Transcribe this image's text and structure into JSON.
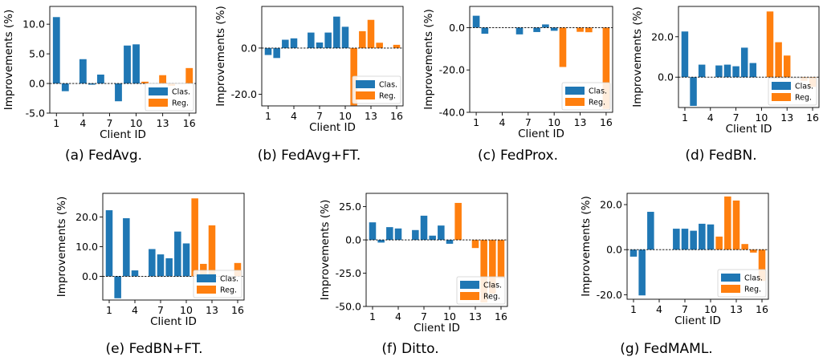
{
  "figure": {
    "colors": {
      "clas": "#1f77b4",
      "reg": "#ff7f0e"
    }
  },
  "chart_data": [
    {
      "type": "bar",
      "caption": "(a) FedAvg.",
      "xlabel": "Client ID",
      "ylabel": "Improvements (%)",
      "ylim": [
        -5,
        13
      ],
      "yticks": [
        -5,
        0,
        5,
        10
      ],
      "yticklabels": [
        "-5.0",
        "0.0",
        "5.0",
        "10.0"
      ],
      "xticks": [
        1,
        4,
        7,
        10,
        13,
        16
      ],
      "legend": {
        "position": "lower-right",
        "entries": [
          "Clas.",
          "Reg."
        ]
      },
      "clients": [
        1,
        2,
        3,
        4,
        5,
        6,
        7,
        8,
        9,
        10,
        11,
        12,
        13,
        14,
        15,
        16
      ],
      "series": [
        {
          "name": "Clas.",
          "clients": [
            1,
            2,
            3,
            4,
            5,
            6,
            7,
            8,
            9,
            10
          ],
          "values": [
            11.2,
            -1.3,
            0.0,
            4.1,
            -0.2,
            1.5,
            0.0,
            -3.0,
            6.4,
            6.6
          ]
        },
        {
          "name": "Reg.",
          "clients": [
            11,
            12,
            13,
            14,
            15,
            16
          ],
          "values": [
            0.3,
            0.0,
            1.4,
            -0.4,
            0.0,
            2.6
          ]
        }
      ]
    },
    {
      "type": "bar",
      "caption": "(b) FedAvg+FT.",
      "xlabel": "Client ID",
      "ylabel": "Improvements (%)",
      "ylim": [
        -25,
        18
      ],
      "yticks": [
        -20,
        0
      ],
      "yticklabels": [
        "-20.0",
        "0.0"
      ],
      "xticks": [
        1,
        4,
        7,
        10,
        13,
        16
      ],
      "legend": {
        "position": "lower-right",
        "entries": [
          "Clas.",
          "Reg."
        ]
      },
      "clients": [
        1,
        2,
        3,
        4,
        5,
        6,
        7,
        8,
        9,
        10,
        11,
        12,
        13,
        14,
        15,
        16
      ],
      "series": [
        {
          "name": "Clas.",
          "clients": [
            1,
            2,
            3,
            4,
            5,
            6,
            7,
            8,
            9,
            10
          ],
          "values": [
            -3.0,
            -4.3,
            3.6,
            4.2,
            0.0,
            6.7,
            2.4,
            6.7,
            13.6,
            9.2
          ]
        },
        {
          "name": "Reg.",
          "clients": [
            11,
            12,
            13,
            14,
            15,
            16
          ],
          "values": [
            -24.8,
            7.3,
            12.2,
            2.3,
            0.0,
            1.4
          ]
        }
      ]
    },
    {
      "type": "bar",
      "caption": "(c) FedProx.",
      "xlabel": "Client ID",
      "ylabel": "Improvements (%)",
      "ylim": [
        -40,
        10
      ],
      "yticks": [
        -40,
        -20,
        0
      ],
      "yticklabels": [
        "-40.0",
        "-20.0",
        "0.0"
      ],
      "xticks": [
        1,
        4,
        7,
        10,
        13,
        16
      ],
      "legend": {
        "position": "lower-right",
        "entries": [
          "Clas.",
          "Reg."
        ]
      },
      "clients": [
        1,
        2,
        3,
        4,
        5,
        6,
        7,
        8,
        9,
        10,
        11,
        12,
        13,
        14,
        15,
        16
      ],
      "series": [
        {
          "name": "Clas.",
          "clients": [
            1,
            2,
            3,
            4,
            5,
            6,
            7,
            8,
            9,
            10
          ],
          "values": [
            5.6,
            -2.9,
            0.0,
            0.0,
            0.0,
            -3.2,
            0.0,
            -2.1,
            1.5,
            -1.5
          ]
        },
        {
          "name": "Reg.",
          "clients": [
            11,
            12,
            13,
            14,
            15,
            16
          ],
          "values": [
            -18.6,
            0.0,
            -2.0,
            -2.2,
            0.0,
            -38.4
          ]
        }
      ]
    },
    {
      "type": "bar",
      "caption": "(d) FedBN.",
      "xlabel": "Client ID",
      "ylabel": "Improvements (%)",
      "ylim": [
        -15,
        35
      ],
      "yticks": [
        0,
        20
      ],
      "yticklabels": [
        "0.0",
        "20.0"
      ],
      "xticks": [
        1,
        4,
        7,
        10,
        13,
        16
      ],
      "legend": {
        "position": "lower-right",
        "entries": [
          "Clas.",
          "Reg."
        ]
      },
      "clients": [
        1,
        2,
        3,
        4,
        5,
        6,
        7,
        8,
        9,
        10,
        11,
        12,
        13,
        14,
        15,
        16
      ],
      "series": [
        {
          "name": "Clas.",
          "clients": [
            1,
            2,
            3,
            4,
            5,
            6,
            7,
            8,
            9,
            10
          ],
          "values": [
            22.6,
            -14.2,
            6.2,
            0.0,
            5.8,
            6.2,
            5.4,
            14.6,
            7.0,
            0.0
          ]
        },
        {
          "name": "Reg.",
          "clients": [
            11,
            12,
            13,
            14,
            15,
            16
          ],
          "values": [
            32.5,
            17.3,
            10.7,
            0.0,
            -1.8,
            -4.8
          ]
        }
      ]
    },
    {
      "type": "bar",
      "caption": "(e) FedBN+FT.",
      "xlabel": "Client ID",
      "ylabel": "Improvements (%)",
      "ylim": [
        -8,
        28
      ],
      "yticks": [
        0,
        10,
        20
      ],
      "yticklabels": [
        "0.0",
        "10.0",
        "20.0"
      ],
      "xticks": [
        1,
        4,
        7,
        10,
        13,
        16
      ],
      "legend": {
        "position": "lower-right",
        "entries": [
          "Clas.",
          "Reg."
        ]
      },
      "clients": [
        1,
        2,
        3,
        4,
        5,
        6,
        7,
        8,
        9,
        10,
        11,
        12,
        13,
        14,
        15,
        16
      ],
      "series": [
        {
          "name": "Clas.",
          "clients": [
            1,
            2,
            3,
            4,
            5,
            6,
            7,
            8,
            9,
            10
          ],
          "values": [
            22.3,
            -7.4,
            19.6,
            2.0,
            0.0,
            9.2,
            7.4,
            6.1,
            15.1,
            11.1
          ]
        },
        {
          "name": "Reg.",
          "clients": [
            11,
            12,
            13,
            14,
            15,
            16
          ],
          "values": [
            26.3,
            4.2,
            17.2,
            0.0,
            0.0,
            4.5
          ]
        }
      ]
    },
    {
      "type": "bar",
      "caption": "(f) Ditto.",
      "xlabel": "Client ID",
      "ylabel": "Improvements (%)",
      "ylim": [
        -50,
        35
      ],
      "yticks": [
        -50,
        -25,
        0,
        25
      ],
      "yticklabels": [
        "-50.0",
        "-25.0",
        "0.0",
        "25.0"
      ],
      "xticks": [
        1,
        4,
        7,
        10,
        13,
        16
      ],
      "legend": {
        "position": "lower-right",
        "entries": [
          "Clas.",
          "Reg."
        ]
      },
      "clients": [
        1,
        2,
        3,
        4,
        5,
        6,
        7,
        8,
        9,
        10,
        11,
        12,
        13,
        14,
        15,
        16
      ],
      "series": [
        {
          "name": "Clas.",
          "clients": [
            1,
            2,
            3,
            4,
            5,
            6,
            7,
            8,
            9,
            10
          ],
          "values": [
            13.2,
            -2.0,
            9.6,
            8.6,
            0.0,
            7.4,
            18.2,
            3.2,
            10.8,
            -2.9
          ]
        },
        {
          "name": "Reg.",
          "clients": [
            11,
            12,
            13,
            14,
            15,
            16
          ],
          "values": [
            27.8,
            0.0,
            -6.1,
            -47.0,
            -40.5,
            -28.7
          ]
        }
      ]
    },
    {
      "type": "bar",
      "caption": "(g) FedMAML.",
      "xlabel": "Client ID",
      "ylabel": "Improvements (%)",
      "ylim": [
        -22,
        25
      ],
      "yticks": [
        -20,
        0,
        20
      ],
      "yticklabels": [
        "-20.0",
        "0.0",
        "20.0"
      ],
      "xticks": [
        1,
        4,
        7,
        10,
        13,
        16
      ],
      "legend": {
        "position": "lower-right",
        "entries": [
          "Clas.",
          "Reg."
        ]
      },
      "clients": [
        1,
        2,
        3,
        4,
        5,
        6,
        7,
        8,
        9,
        10,
        11,
        12,
        13,
        14,
        15,
        16
      ],
      "series": [
        {
          "name": "Clas.",
          "clients": [
            1,
            2,
            3,
            4,
            5,
            6,
            7,
            8,
            9,
            10
          ],
          "values": [
            -3.1,
            -20.3,
            16.8,
            0.0,
            0.0,
            9.3,
            9.3,
            8.4,
            11.5,
            11.2
          ]
        },
        {
          "name": "Reg.",
          "clients": [
            11,
            12,
            13,
            14,
            15,
            16
          ],
          "values": [
            5.8,
            23.6,
            21.8,
            2.5,
            -1.3,
            -13.9
          ]
        }
      ]
    }
  ]
}
